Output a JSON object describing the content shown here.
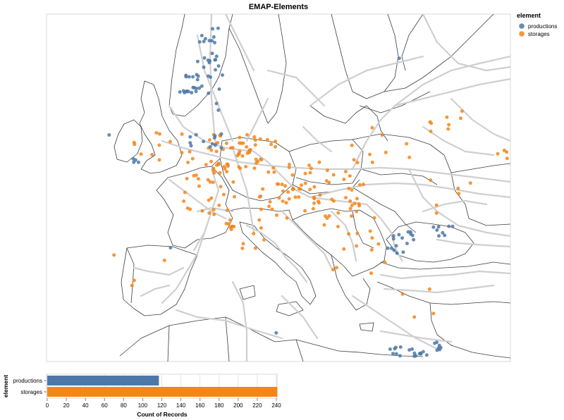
{
  "chart_data": [
    {
      "type": "map",
      "title": "EMAP-Elements",
      "legend": {
        "title": "element",
        "placement": "top-right",
        "items": [
          {
            "label": "productions",
            "color": "#4c78a8"
          },
          {
            "label": "storages",
            "color": "#f58518"
          }
        ]
      },
      "series": [
        {
          "name": "productions",
          "color": "#4c78a8",
          "point_count_approx": 117
        },
        {
          "name": "storages",
          "color": "#f58518",
          "point_count_approx": 241
        }
      ],
      "region": "Europe",
      "layers": [
        "country borders",
        "gas pipeline network"
      ]
    },
    {
      "type": "bar",
      "orientation": "horizontal",
      "ylabel": "element",
      "xlabel": "Count of Records",
      "categories": [
        "productions",
        "storages"
      ],
      "values": [
        117,
        241
      ],
      "colors": [
        "#4c78a8",
        "#f58518"
      ],
      "xlim": [
        0,
        240
      ],
      "xticks": [
        0,
        20,
        40,
        60,
        80,
        100,
        120,
        140,
        160,
        180,
        200,
        220,
        240
      ],
      "grid": true
    }
  ]
}
